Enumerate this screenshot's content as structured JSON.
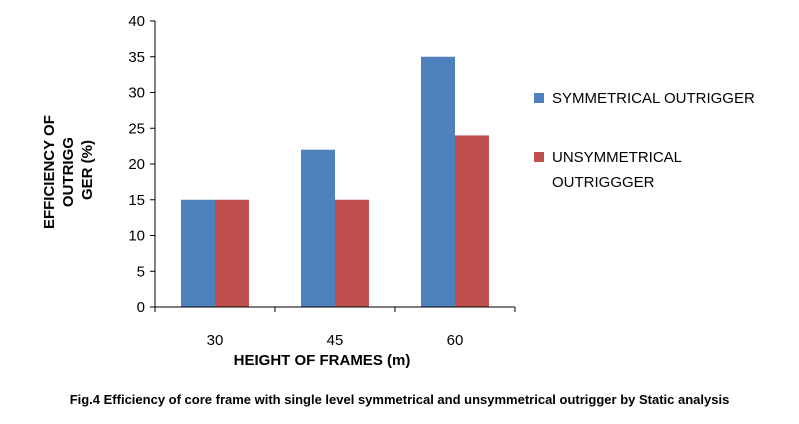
{
  "chart_data": {
    "type": "bar",
    "title": "",
    "categories": [
      "30",
      "45",
      "60"
    ],
    "series": [
      {
        "name": "SYMMETRICAL OUTRIGGER",
        "values": [
          15,
          22,
          35
        ],
        "color": "#4f81bd"
      },
      {
        "name": "UNSYMMETRICAL OUTRIGGGER",
        "values": [
          15,
          15,
          24
        ],
        "color": "#c0504d"
      }
    ],
    "xlabel": "HEIGHT OF FRAMES (m)",
    "ylabel_lines": [
      "EFFICIENCY OF",
      "OUTRIGG",
      "GER (%)"
    ],
    "ylim": [
      0,
      40
    ],
    "yticks": [
      0,
      5,
      10,
      15,
      20,
      25,
      30,
      35,
      40
    ],
    "grid": false,
    "legend_position": "right"
  },
  "caption": "Fig.4 Efficiency of core frame with single level symmetrical and unsymmetrical outrigger by Static analysis"
}
